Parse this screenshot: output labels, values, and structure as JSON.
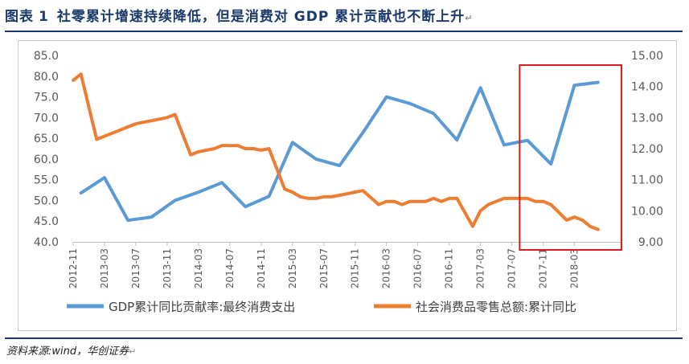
{
  "figure": {
    "label": "图表",
    "number": "1",
    "title": "社零累计增速持续降低，但是消费对 GDP 累计贡献也不断上升",
    "end_mark": "↵"
  },
  "source": {
    "text": "资料来源:wind，华创证券",
    "end_mark": "↵"
  },
  "colors": {
    "title": "#1b3a6b",
    "series_blue": "#5b9bd5",
    "series_orange": "#ed7d31",
    "highlight_box": "#e11c1c",
    "axis_text": "#595959"
  },
  "chart_data": {
    "type": "line",
    "dual_axis": true,
    "x_ticks": [
      "2012-11",
      "2013-03",
      "2013-07",
      "2013-11",
      "2014-03",
      "2014-07",
      "2014-11",
      "2015-03",
      "2015-07",
      "2015-11",
      "2016-03",
      "2016-07",
      "2016-11",
      "2017-03",
      "2017-07",
      "2017-11",
      "2018-03"
    ],
    "left_axis": {
      "range": [
        40.0,
        85.0
      ],
      "ticks": [
        "40.0",
        "45.0",
        "50.0",
        "55.0",
        "60.0",
        "65.0",
        "70.0",
        "75.0",
        "80.0",
        "85.0"
      ]
    },
    "right_axis": {
      "range": [
        9.0,
        15.0
      ],
      "ticks": [
        "9.00",
        "10.00",
        "11.00",
        "12.00",
        "13.00",
        "14.00",
        "15.00"
      ]
    },
    "legend_position": "bottom",
    "series": [
      {
        "name": "GDP累计同比贡献率:最终消费支出",
        "axis": "left",
        "color": "#5b9bd5",
        "points": [
          [
            "2012-12",
            51.8
          ],
          [
            "2013-03",
            55.5
          ],
          [
            "2013-06",
            45.2
          ],
          [
            "2013-09",
            46.0
          ],
          [
            "2013-12",
            50.0
          ],
          [
            "2014-03",
            52.0
          ],
          [
            "2014-06",
            54.3
          ],
          [
            "2014-09",
            48.5
          ],
          [
            "2014-12",
            51.0
          ],
          [
            "2015-03",
            64.0
          ],
          [
            "2015-06",
            60.0
          ],
          [
            "2015-09",
            58.4
          ],
          [
            "2015-12",
            66.4
          ],
          [
            "2016-03",
            75.0
          ],
          [
            "2016-06",
            73.4
          ],
          [
            "2016-09",
            71.0
          ],
          [
            "2016-12",
            64.6
          ],
          [
            "2017-03",
            77.2
          ],
          [
            "2017-06",
            63.4
          ],
          [
            "2017-09",
            64.5
          ],
          [
            "2017-12",
            58.8
          ],
          [
            "2018-03",
            77.8
          ],
          [
            "2018-06",
            78.5
          ]
        ]
      },
      {
        "name": "社会消费品零售总额:累计同比",
        "axis": "right",
        "color": "#ed7d31",
        "points": [
          [
            "2012-11",
            14.2
          ],
          [
            "2012-12",
            14.4
          ],
          [
            "2013-02",
            12.3
          ],
          [
            "2013-03",
            12.4
          ],
          [
            "2013-04",
            12.5
          ],
          [
            "2013-05",
            12.6
          ],
          [
            "2013-06",
            12.7
          ],
          [
            "2013-07",
            12.8
          ],
          [
            "2013-08",
            12.85
          ],
          [
            "2013-09",
            12.9
          ],
          [
            "2013-10",
            12.95
          ],
          [
            "2013-11",
            13.0
          ],
          [
            "2013-12",
            13.1
          ],
          [
            "2014-02",
            11.8
          ],
          [
            "2014-03",
            11.9
          ],
          [
            "2014-04",
            11.95
          ],
          [
            "2014-05",
            12.0
          ],
          [
            "2014-06",
            12.1
          ],
          [
            "2014-07",
            12.1
          ],
          [
            "2014-08",
            12.1
          ],
          [
            "2014-09",
            12.0
          ],
          [
            "2014-10",
            12.0
          ],
          [
            "2014-11",
            11.95
          ],
          [
            "2014-12",
            12.0
          ],
          [
            "2015-02",
            10.7
          ],
          [
            "2015-03",
            10.6
          ],
          [
            "2015-04",
            10.45
          ],
          [
            "2015-05",
            10.4
          ],
          [
            "2015-06",
            10.4
          ],
          [
            "2015-07",
            10.45
          ],
          [
            "2015-08",
            10.45
          ],
          [
            "2015-09",
            10.5
          ],
          [
            "2015-10",
            10.55
          ],
          [
            "2015-11",
            10.6
          ],
          [
            "2015-12",
            10.65
          ],
          [
            "2016-02",
            10.2
          ],
          [
            "2016-03",
            10.3
          ],
          [
            "2016-04",
            10.3
          ],
          [
            "2016-05",
            10.2
          ],
          [
            "2016-06",
            10.3
          ],
          [
            "2016-07",
            10.3
          ],
          [
            "2016-08",
            10.3
          ],
          [
            "2016-09",
            10.4
          ],
          [
            "2016-10",
            10.3
          ],
          [
            "2016-11",
            10.4
          ],
          [
            "2016-12",
            10.4
          ],
          [
            "2017-02",
            9.5
          ],
          [
            "2017-03",
            10.0
          ],
          [
            "2017-04",
            10.2
          ],
          [
            "2017-05",
            10.3
          ],
          [
            "2017-06",
            10.4
          ],
          [
            "2017-07",
            10.4
          ],
          [
            "2017-08",
            10.4
          ],
          [
            "2017-09",
            10.4
          ],
          [
            "2017-10",
            10.3
          ],
          [
            "2017-11",
            10.3
          ],
          [
            "2017-12",
            10.2
          ],
          [
            "2018-02",
            9.7
          ],
          [
            "2018-03",
            9.8
          ],
          [
            "2018-04",
            9.7
          ],
          [
            "2018-05",
            9.5
          ],
          [
            "2018-06",
            9.4
          ]
        ]
      }
    ],
    "highlight": {
      "from": "2017-08",
      "to": "2018-09",
      "color": "#e11c1c"
    }
  }
}
